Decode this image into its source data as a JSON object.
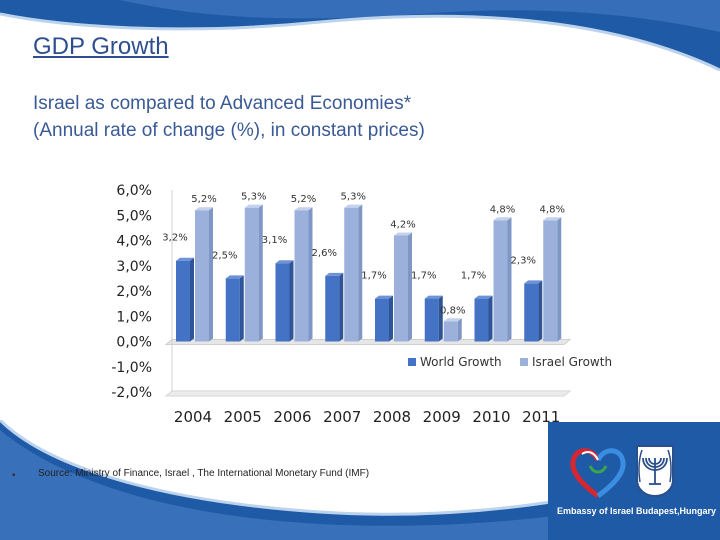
{
  "slide": {
    "title": "GDP Growth",
    "subtitle_line1": "Israel as compared to Advanced Economies*",
    "subtitle_line2": "(Annual rate of change (%), in constant prices)",
    "bullet": "▪",
    "source": "Source:  Ministry of Finance, Israel , The International Monetary Fund (IMF)",
    "embassy_text": "Embassy of Israel Budapest,Hungary",
    "colors": {
      "title": "#2d4f8f",
      "wave": "#1f5aa6",
      "world": "#4472c4",
      "israel": "#9bb1dc"
    }
  },
  "chart_data": {
    "type": "bar",
    "categories": [
      "2004",
      "2005",
      "2006",
      "2007",
      "2008",
      "2009",
      "2010",
      "2011"
    ],
    "series": [
      {
        "name": "World Growth",
        "values": [
          3.2,
          2.5,
          3.1,
          2.6,
          1.7,
          1.7,
          1.7,
          2.3
        ],
        "labels": [
          "3,2%",
          "2,5%",
          "3,1%",
          "2,6%",
          "1,7%",
          "1,7%",
          "1,7%",
          "2,3%"
        ]
      },
      {
        "name": "Israel Growth",
        "values": [
          5.2,
          5.3,
          5.2,
          5.3,
          4.2,
          0.8,
          4.8,
          4.8
        ],
        "labels": [
          "5,2%",
          "5,3%",
          "5,2%",
          "5,3%",
          "4,2%",
          "0,8%",
          "4,8%",
          "4,8%"
        ]
      }
    ],
    "yticks": [
      "6,0%",
      "5,0%",
      "4,0%",
      "3,0%",
      "2,0%",
      "1,0%",
      "0,0%",
      "-1,0%",
      "-2,0%"
    ],
    "ylim": [
      -2,
      6
    ],
    "legend": "bottom-right",
    "grid": false
  }
}
